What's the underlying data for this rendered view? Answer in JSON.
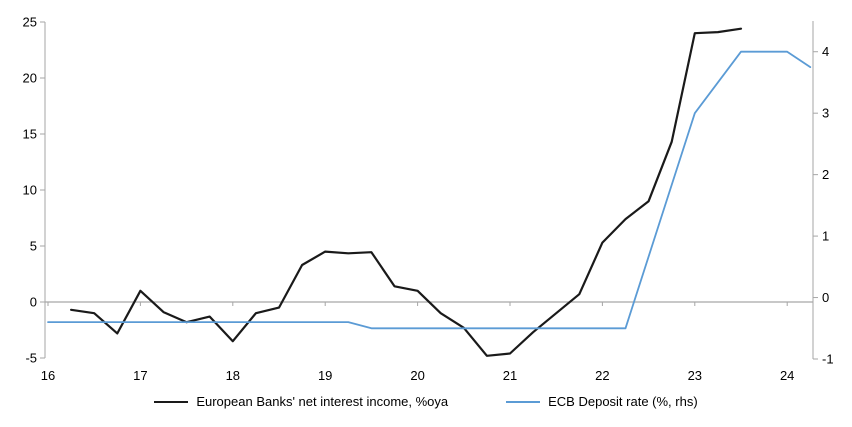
{
  "chart_data": {
    "type": "line",
    "title": "",
    "x_axis": {
      "ticks": [
        "16",
        "17",
        "18",
        "19",
        "20",
        "21",
        "22",
        "23",
        "24"
      ],
      "tick_values": [
        16,
        17,
        18,
        19,
        20,
        21,
        22,
        23,
        24
      ],
      "range": [
        16,
        24.28
      ]
    },
    "left_y_axis": {
      "ticks": [
        "-5",
        "0",
        "5",
        "10",
        "15",
        "20",
        "25"
      ],
      "tick_values": [
        -5,
        0,
        5,
        10,
        15,
        20,
        25
      ],
      "range": [
        -5,
        25
      ]
    },
    "right_y_axis": {
      "ticks": [
        "-1",
        "0",
        "1",
        "2",
        "3",
        "4"
      ],
      "tick_values": [
        -1,
        0,
        1,
        2,
        3,
        4
      ],
      "range": [
        -1,
        4.5
      ]
    },
    "grid": "zero-line-only",
    "legend_position": "bottom-center",
    "series": [
      {
        "name": "European Banks' net interest income, %oya",
        "axis": "left",
        "color": "#1a1a1a",
        "x": [
          16.25,
          16.5,
          16.75,
          17.0,
          17.25,
          17.5,
          17.75,
          18.0,
          18.25,
          18.5,
          18.75,
          19.0,
          19.25,
          19.5,
          19.75,
          20.0,
          20.25,
          20.5,
          20.75,
          21.0,
          21.25,
          21.5,
          21.75,
          22.0,
          22.25,
          22.5,
          22.75,
          23.0,
          23.25,
          23.5
        ],
        "values": [
          -0.7,
          -1.0,
          -2.8,
          1.0,
          -0.9,
          -1.8,
          -1.3,
          -3.5,
          -1.0,
          -0.5,
          3.3,
          4.5,
          4.35,
          4.45,
          1.4,
          1.0,
          -1.0,
          -2.3,
          -4.8,
          -4.6,
          -2.7,
          -1.0,
          0.7,
          5.3,
          7.4,
          9.0,
          14.3,
          24.0,
          24.1,
          24.4
        ]
      },
      {
        "name": "ECB Deposit rate (%, rhs)",
        "axis": "right",
        "color": "#5b9bd5",
        "x": [
          16.0,
          19.25,
          19.5,
          22.25,
          23.0,
          23.5,
          24.0,
          24.25
        ],
        "values": [
          -0.4,
          -0.4,
          -0.5,
          -0.5,
          3.0,
          4.0,
          4.0,
          3.75
        ]
      }
    ]
  },
  "colors": {
    "axis": "#a6a6a6",
    "zero_line": "#a6a6a6",
    "text": "#000000",
    "background": "#ffffff"
  }
}
